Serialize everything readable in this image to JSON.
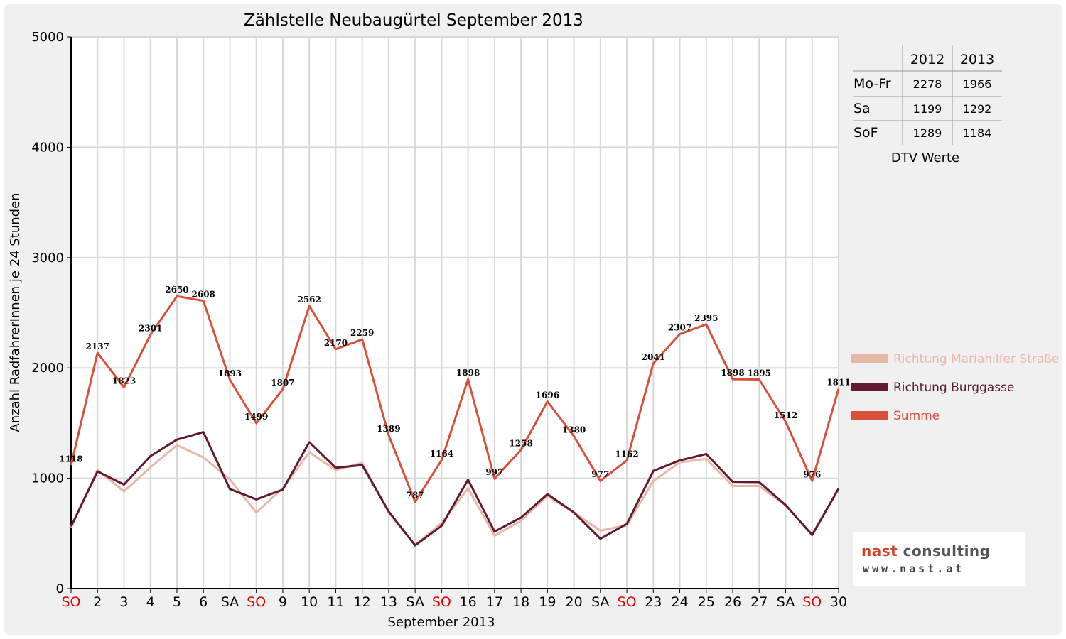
{
  "chart_data": {
    "type": "line",
    "title": "Zählstelle Neubaugürtel September 2013",
    "xlabel": "September 2013",
    "ylabel": "Anzahl RadfahrerInnen je 24 Stunden",
    "ylim": [
      0,
      5000
    ],
    "yticks": [
      0,
      1000,
      2000,
      3000,
      4000,
      5000
    ],
    "grid": true,
    "legend_position": "right",
    "categories": [
      "SO",
      "2",
      "3",
      "4",
      "5",
      "6",
      "SA",
      "SO",
      "9",
      "10",
      "11",
      "12",
      "13",
      "SA",
      "SO",
      "16",
      "17",
      "18",
      "19",
      "20",
      "SA",
      "SO",
      "23",
      "24",
      "25",
      "26",
      "27",
      "SA",
      "SO",
      "30"
    ],
    "weekend_color": "#e00000",
    "weekday_color": "#000000",
    "weekend_labels": [
      "SO"
    ],
    "series": [
      {
        "name": "Richtung Mariahilfer Straße",
        "color": "#e8b8a6",
        "values": [
          555,
          1075,
          880,
          1100,
          1300,
          1190,
          990,
          690,
          910,
          1235,
          1075,
          1140,
          690,
          395,
          595,
          910,
          480,
          615,
          840,
          690,
          525,
          575,
          975,
          1145,
          1175,
          930,
          930,
          755,
          490,
          905
        ]
      },
      {
        "name": "Richtung Burggasse",
        "color": "#621a30",
        "values": [
          563,
          1062,
          943,
          1201,
          1350,
          1418,
          903,
          809,
          897,
          1327,
          1095,
          1119,
          699,
          392,
          569,
          988,
          517,
          643,
          856,
          690,
          452,
          587,
          1066,
          1162,
          1220,
          968,
          965,
          757,
          486,
          906
        ]
      },
      {
        "name": "Summe",
        "color": "#d9503a",
        "values": [
          1118,
          2137,
          1823,
          2301,
          2650,
          2608,
          1893,
          1499,
          1807,
          2562,
          2170,
          2259,
          1389,
          787,
          1164,
          1898,
          997,
          1258,
          1696,
          1380,
          977,
          1162,
          2041,
          2307,
          2395,
          1898,
          1895,
          1512,
          976,
          1811
        ]
      }
    ],
    "data_labels_series": "Summe"
  },
  "dtv_table": {
    "columns": [
      "",
      "2012",
      "2013"
    ],
    "rows": [
      [
        "Mo-Fr",
        "2278",
        "1966"
      ],
      [
        "Sa",
        "1199",
        "1292"
      ],
      [
        "SoF",
        "1289",
        "1184"
      ]
    ],
    "caption": "DTV Werte"
  },
  "logo": {
    "name_part1": "nast",
    "name_part2": "consulting",
    "url": "www.nast.at",
    "color_primary": "#d0432b",
    "color_secondary": "#555555"
  }
}
